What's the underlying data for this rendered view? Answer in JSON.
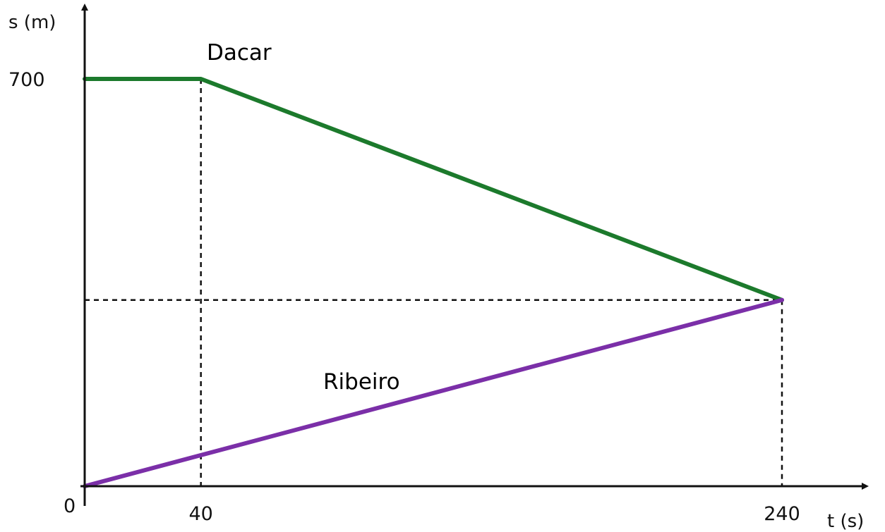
{
  "chart_data": {
    "type": "line",
    "xlabel": "t (s)",
    "ylabel": "s (m)",
    "origin_label": "0",
    "xlim": [
      0,
      240
    ],
    "ylim": [
      0,
      700
    ],
    "x_ticks": [
      40,
      240
    ],
    "y_ticks": [
      700
    ],
    "intersection": {
      "x": 240,
      "y": 320
    },
    "series": [
      {
        "name": "Dacar",
        "color": "#1c7a2c",
        "points": [
          {
            "x": 0,
            "y": 700
          },
          {
            "x": 40,
            "y": 700
          },
          {
            "x": 240,
            "y": 320
          }
        ]
      },
      {
        "name": "Ribeiro",
        "color": "#7b2fa8",
        "points": [
          {
            "x": 0,
            "y": 0
          },
          {
            "x": 240,
            "y": 320
          }
        ]
      }
    ],
    "grid": false
  }
}
